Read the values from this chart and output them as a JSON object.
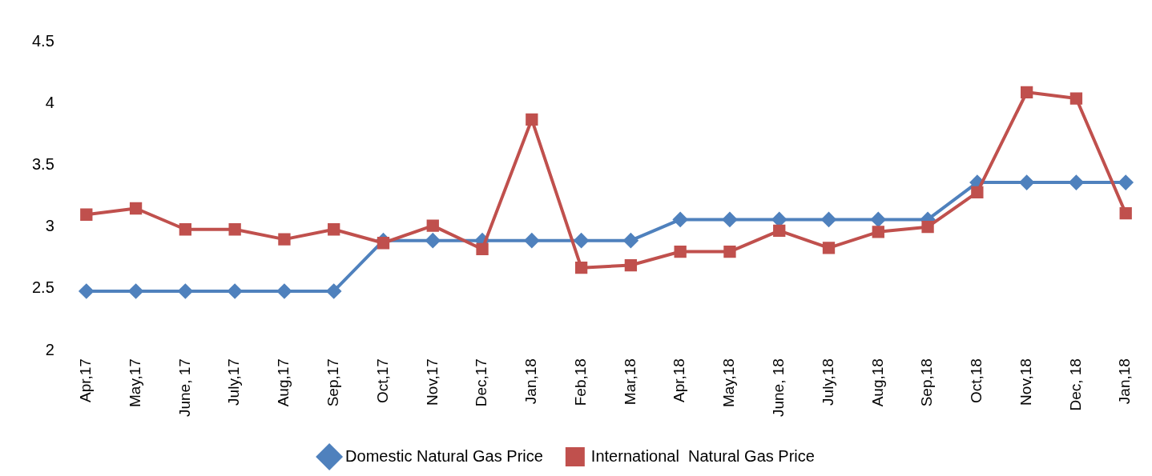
{
  "chart_data": {
    "type": "line",
    "categories": [
      "Apr,17",
      "May,17",
      "June, 17",
      "July,17",
      "Aug,17",
      "Sep,17",
      "Oct,17",
      "Nov,17",
      "Dec,17",
      "Jan,18",
      "Feb,18",
      "Mar,18",
      "Apr,18",
      "May,18",
      "June, 18",
      "July,18",
      "Aug,18",
      "Sep,18",
      "Oct,18",
      "Nov,18",
      "Dec, 18",
      "Jan,18"
    ],
    "series": [
      {
        "name": "Domestic Natural Gas Price",
        "color": "#4f81bd",
        "marker": "diamond",
        "values": [
          2.48,
          2.48,
          2.48,
          2.48,
          2.48,
          2.48,
          2.89,
          2.89,
          2.89,
          2.89,
          2.89,
          2.89,
          3.06,
          3.06,
          3.06,
          3.06,
          3.06,
          3.06,
          3.36,
          3.36,
          3.36,
          3.36
        ]
      },
      {
        "name": "International  Natural Gas Price",
        "color": "#c0504d",
        "marker": "square",
        "values": [
          3.1,
          3.15,
          2.98,
          2.98,
          2.9,
          2.98,
          2.87,
          3.01,
          2.82,
          3.87,
          2.67,
          2.69,
          2.8,
          2.8,
          2.97,
          2.83,
          2.96,
          3.0,
          3.28,
          4.09,
          4.04,
          3.11
        ]
      }
    ],
    "ylim": [
      2,
      4.5
    ],
    "yticks": [
      2,
      2.5,
      3,
      3.5,
      4,
      4.5
    ],
    "grid": false,
    "legend": "bottom",
    "line_style": "solid"
  }
}
